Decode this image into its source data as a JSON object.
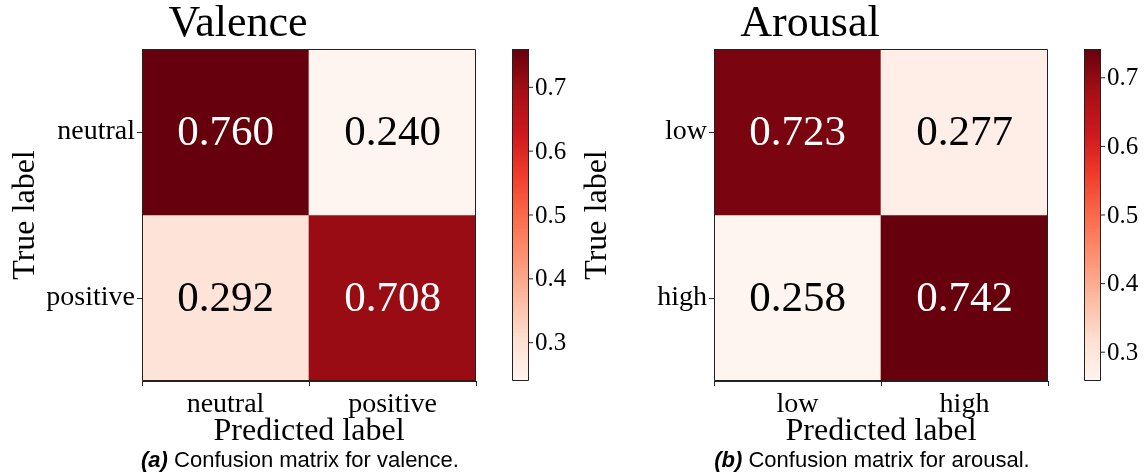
{
  "chart_data": [
    {
      "type": "heatmap",
      "title": "Valence",
      "xlabel": "Predicted label",
      "ylabel": "True label",
      "categories": [
        "neutral",
        "positive"
      ],
      "y_categories": [
        "neutral",
        "positive"
      ],
      "cells": [
        [
          0.76,
          0.24
        ],
        [
          0.292,
          0.708
        ]
      ],
      "cell_labels": [
        [
          "0.760",
          "0.240"
        ],
        [
          "0.292",
          "0.708"
        ]
      ],
      "clim": [
        0.24,
        0.76
      ],
      "cticks": [
        0.3,
        0.4,
        0.5,
        0.6,
        0.7
      ],
      "annotations": [
        "(a) Confusion matrix for valence."
      ]
    },
    {
      "type": "heatmap",
      "title": "Arousal",
      "xlabel": "Predicted label",
      "ylabel": "True label",
      "categories": [
        "low",
        "high"
      ],
      "y_categories": [
        "low",
        "high"
      ],
      "cells": [
        [
          0.723,
          0.277
        ],
        [
          0.258,
          0.742
        ]
      ],
      "cell_labels": [
        [
          "0.723",
          "0.277"
        ],
        [
          "0.258",
          "0.742"
        ]
      ],
      "clim": [
        0.258,
        0.742
      ],
      "cticks": [
        0.3,
        0.4,
        0.5,
        0.6,
        0.7
      ],
      "annotations": [
        "(b) Confusion matrix for arousal."
      ]
    }
  ]
}
